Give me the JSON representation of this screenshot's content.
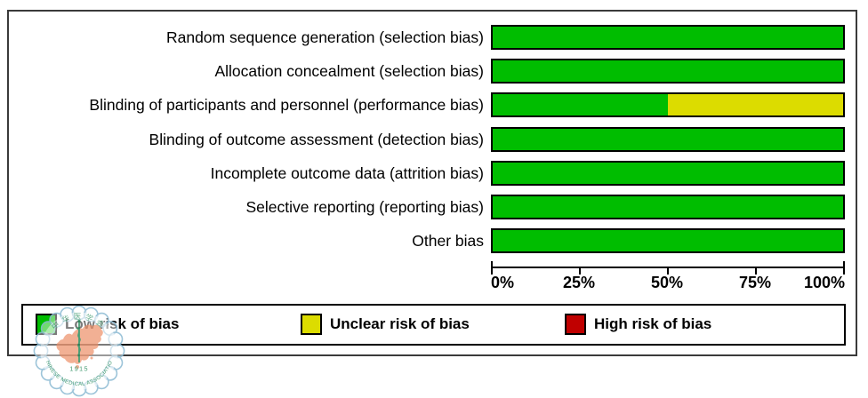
{
  "chart_data": {
    "type": "bar",
    "orientation": "horizontal-stacked",
    "title": "",
    "xlabel": "",
    "ylabel": "",
    "x_axis": {
      "range": [
        0,
        100
      ],
      "tick_labels": [
        "0%",
        "25%",
        "50%",
        "75%",
        "100%"
      ],
      "unit": "%"
    },
    "categories": [
      "Random sequence generation (selection bias)",
      "Allocation concealment (selection bias)",
      "Blinding of participants and personnel (performance bias)",
      "Blinding of outcome assessment (detection bias)",
      "Incomplete outcome data (attrition bias)",
      "Selective reporting (reporting bias)",
      "Other bias"
    ],
    "series": [
      {
        "key": "low",
        "name": "Low risk of bias",
        "color": "#00BD00",
        "values": [
          100,
          100,
          50,
          100,
          100,
          100,
          100
        ]
      },
      {
        "key": "unclear",
        "name": "Unclear risk of bias",
        "color": "#DCDC00",
        "values": [
          0,
          0,
          50,
          0,
          0,
          0,
          0
        ]
      },
      {
        "key": "high",
        "name": "High risk of bias",
        "color": "#C00000",
        "values": [
          0,
          0,
          0,
          0,
          0,
          0,
          0
        ]
      }
    ],
    "legend": [
      "Low risk of bias",
      "Unclear risk of bias",
      "High risk of bias"
    ],
    "legend_position": "bottom",
    "grid": false
  },
  "watermark": {
    "top_text": "中华医学会",
    "arc_text": "CHINESE MEDICAL ASSOCIATION",
    "year": "1915",
    "colors": {
      "ring": "#8FBCD4",
      "map": "#EF9B78",
      "emblem": "#2F9163"
    }
  }
}
